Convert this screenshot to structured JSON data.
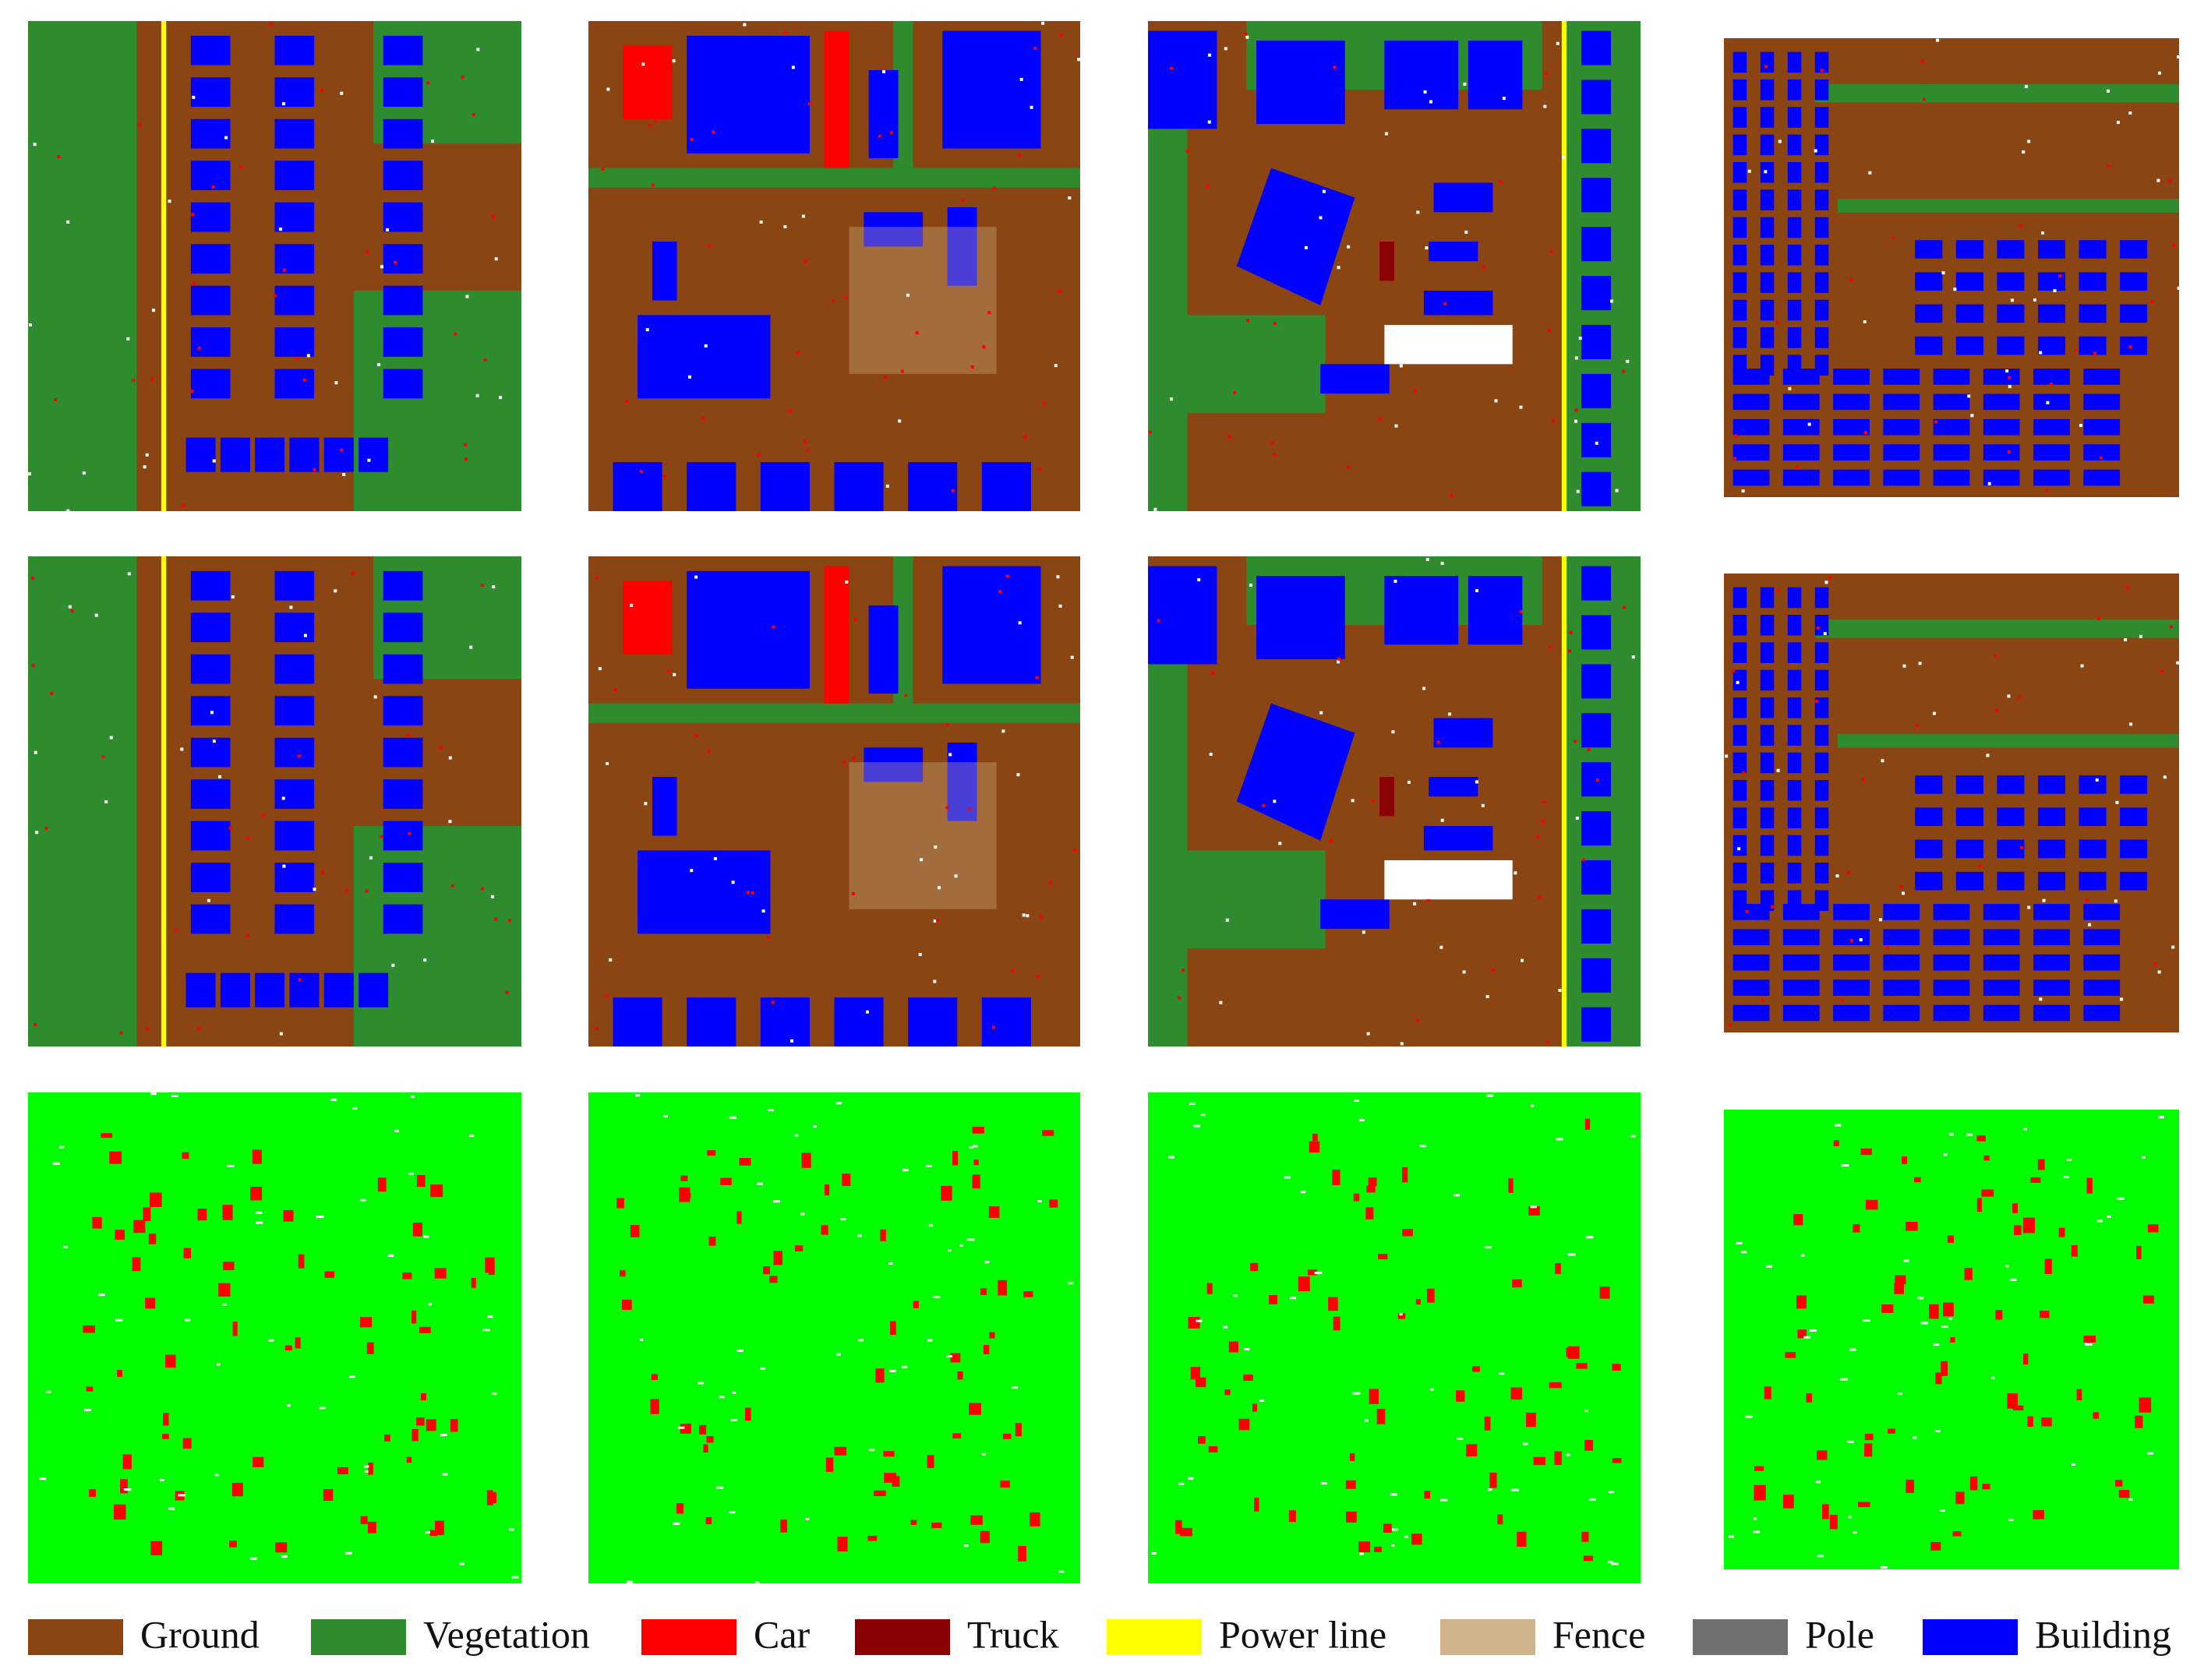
{
  "legend": {
    "items": [
      {
        "label": "Ground",
        "color": "#8b4513"
      },
      {
        "label": "Vegetation",
        "color": "#2e8b2e"
      },
      {
        "label": "Car",
        "color": "#ff0000"
      },
      {
        "label": "Truck",
        "color": "#8b0000"
      },
      {
        "label": "Power line",
        "color": "#ffff00"
      },
      {
        "label": "Fence",
        "color": "#d2b48c"
      },
      {
        "label": "Pole",
        "color": "#707070"
      },
      {
        "label": "Building",
        "color": "#0000ff"
      }
    ]
  }
}
